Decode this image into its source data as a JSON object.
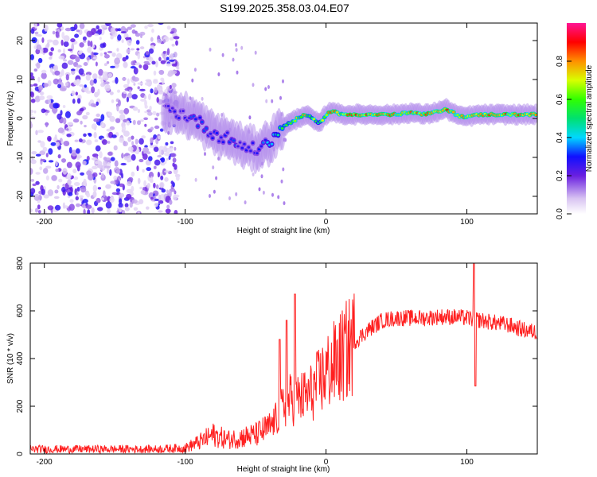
{
  "title": "S199.2025.358.03.04.E07",
  "chart_data": [
    {
      "type": "heatmap",
      "xlabel": "Height of straight line (km)",
      "ylabel": "Frequency (Hz)",
      "xlim": [
        -210,
        150
      ],
      "ylim": [
        -24.5,
        24.5
      ],
      "x_ticks": [
        -200,
        -100,
        0,
        100
      ],
      "x_tick_labels": [
        "-200",
        "-100",
        "0",
        "100"
      ],
      "y_ticks": [
        -20,
        -10,
        0,
        10,
        20
      ],
      "y_tick_labels": [
        "-20",
        "-10",
        "0",
        "10",
        "20"
      ],
      "colorbar": {
        "label": "Normalized spectral amplitude",
        "range": [
          0,
          1
        ],
        "ticks": [
          0.0,
          0.2,
          0.4,
          0.6,
          0.8
        ],
        "tick_labels": [
          "0.0",
          "0.2",
          "0.4",
          "0.6",
          "0.8"
        ]
      },
      "ridge": {
        "x": [
          -115,
          -110,
          -100,
          -90,
          -80,
          -70,
          -60,
          -50,
          -40,
          -35,
          -30,
          -20,
          -15,
          -10,
          -5,
          0,
          5,
          10,
          20,
          30,
          40,
          50,
          60,
          70,
          80,
          85,
          90,
          95,
          100,
          110,
          120,
          130,
          140,
          150
        ],
        "freq": [
          2.5,
          2,
          1,
          -1,
          -4,
          -5,
          -7,
          -8,
          -6,
          -4,
          -2,
          0,
          1,
          0,
          -1.5,
          1,
          2,
          1,
          1,
          1,
          1,
          1,
          1.5,
          1,
          1.8,
          2.5,
          1.5,
          0.5,
          0.5,
          1,
          1,
          1,
          1,
          1
        ],
        "amplitude": [
          0.2,
          0.3,
          0.3,
          0.35,
          0.3,
          0.35,
          0.3,
          0.3,
          0.4,
          0.5,
          0.6,
          0.75,
          0.8,
          0.7,
          0.6,
          0.8,
          0.9,
          0.8,
          0.9,
          0.9,
          0.85,
          0.85,
          0.85,
          0.85,
          0.8,
          0.95,
          0.85,
          0.8,
          0.8,
          0.85,
          0.85,
          0.85,
          0.85,
          0.8
        ]
      },
      "noise_region": {
        "x_range": [
          -210,
          -115
        ],
        "amplitude": [
          0.05,
          0.3
        ]
      }
    },
    {
      "type": "line",
      "xlabel": "Height of straight line (km)",
      "ylabel": "SNR (10 * v/v)",
      "xlim": [
        -210,
        150
      ],
      "ylim": [
        0,
        800
      ],
      "x_ticks": [
        -200,
        -100,
        0,
        100
      ],
      "x_tick_labels": [
        "-200",
        "-100",
        "0",
        "100"
      ],
      "y_ticks": [
        0,
        200,
        400,
        600,
        800
      ],
      "y_tick_labels": [
        "0",
        "200",
        "400",
        "600",
        "800"
      ],
      "color": "#ff2020",
      "envelope": {
        "x": [
          -210,
          -180,
          -150,
          -120,
          -100,
          -90,
          -80,
          -70,
          -60,
          -50,
          -40,
          -35,
          -30,
          -25,
          -20,
          -15,
          -10,
          -5,
          0,
          10,
          20,
          30,
          40,
          50,
          60,
          70,
          80,
          90,
          100,
          110,
          120,
          130,
          140,
          150
        ],
        "snr": [
          20,
          20,
          20,
          20,
          25,
          50,
          80,
          60,
          70,
          80,
          110,
          150,
          200,
          230,
          230,
          240,
          260,
          300,
          340,
          400,
          470,
          520,
          560,
          570,
          570,
          570,
          575,
          575,
          570,
          560,
          550,
          540,
          520,
          510
        ]
      },
      "spikes": [
        {
          "x": -22,
          "snr": 670
        },
        {
          "x": -33,
          "snr": 480
        },
        {
          "x": -28,
          "snr": 560
        },
        {
          "x": 105,
          "snr": 800
        },
        {
          "x": 106,
          "snr": 285
        }
      ]
    }
  ]
}
